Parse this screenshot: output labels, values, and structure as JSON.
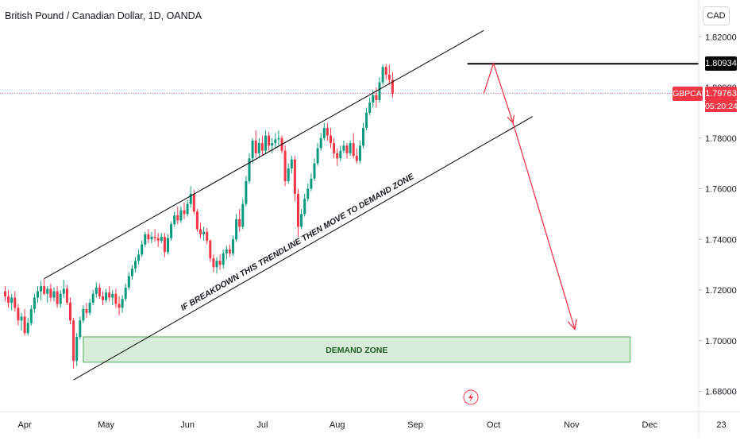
{
  "chart_data": {
    "type": "candlestick",
    "title": "British Pound / Canadian Dollar, 1D, OANDA",
    "symbol": "GBPCAD",
    "currency": "CAD",
    "ylim": [
      1.672,
      1.832
    ],
    "y_ticks": [
      "1.82000",
      "1.80000",
      "1.78000",
      "1.76000",
      "1.74000",
      "1.72000",
      "1.70000",
      "1.68000"
    ],
    "y_tick_values": [
      1.82,
      1.8,
      1.78,
      1.76,
      1.74,
      1.72,
      1.7,
      1.68
    ],
    "x_ticks": [
      "Apr",
      "May",
      "Jun",
      "Jul",
      "Aug",
      "Sep",
      "Oct",
      "Nov",
      "Dec",
      "23"
    ],
    "x_tick_index": [
      6,
      31,
      56,
      79,
      102,
      126,
      150,
      174,
      198,
      220
    ],
    "high_line": {
      "value": 1.80934,
      "label": "1.80934",
      "start_index": 142,
      "color": "#000000"
    },
    "last_price": {
      "value": 1.79763,
      "label": "1.79763",
      "timer": "05:20:24",
      "color": "#f23645"
    },
    "annotations": [
      {
        "type": "zone",
        "label": "DEMAND ZONE",
        "from_index": 24,
        "to_index": 192,
        "y_low": 1.6915,
        "y_high": 1.7015
      },
      {
        "type": "text",
        "label": "IF BREAKDOWN THIS TRENDLINE THEN MOVE TO DEMAND ZONE"
      },
      {
        "type": "channel_upper",
        "from": [
          12,
          1.7245
        ],
        "to": [
          147,
          1.8225
        ]
      },
      {
        "type": "channel_lower",
        "from": [
          21,
          1.6845
        ],
        "to": [
          162,
          1.7885
        ]
      },
      {
        "type": "arrow_path",
        "points": [
          [
            147,
            1.7975
          ],
          [
            150,
            1.8095
          ],
          [
            156,
            1.786
          ]
        ]
      },
      {
        "type": "arrow",
        "from": [
          156,
          1.786
        ],
        "to": [
          175,
          1.7045
        ]
      }
    ],
    "candles": [
      [
        1.7195,
        1.7215,
        1.7155,
        1.7175
      ],
      [
        1.7175,
        1.72,
        1.713,
        1.715
      ],
      [
        1.715,
        1.7185,
        1.712,
        1.717
      ],
      [
        1.717,
        1.7195,
        1.7115,
        1.713
      ],
      [
        1.713,
        1.7145,
        1.706,
        1.708
      ],
      [
        1.708,
        1.711,
        1.704,
        1.7095
      ],
      [
        1.7095,
        1.7125,
        1.702,
        1.703
      ],
      [
        1.703,
        1.709,
        1.702,
        1.707
      ],
      [
        1.707,
        1.714,
        1.706,
        1.7125
      ],
      [
        1.7125,
        1.7185,
        1.711,
        1.717
      ],
      [
        1.717,
        1.7215,
        1.715,
        1.7195
      ],
      [
        1.7195,
        1.7235,
        1.716,
        1.7215
      ],
      [
        1.7215,
        1.7245,
        1.718,
        1.7185
      ],
      [
        1.7185,
        1.7215,
        1.715,
        1.7205
      ],
      [
        1.7205,
        1.7225,
        1.7155,
        1.717
      ],
      [
        1.717,
        1.721,
        1.7155,
        1.7195
      ],
      [
        1.7195,
        1.7215,
        1.713,
        1.7145
      ],
      [
        1.7145,
        1.72,
        1.713,
        1.7185
      ],
      [
        1.7185,
        1.724,
        1.717,
        1.7205
      ],
      [
        1.7205,
        1.722,
        1.714,
        1.715
      ],
      [
        1.715,
        1.717,
        1.7065,
        1.708
      ],
      [
        1.708,
        1.709,
        1.689,
        1.692
      ],
      [
        1.692,
        1.703,
        1.69,
        1.7015
      ],
      [
        1.7015,
        1.7095,
        1.7005,
        1.708
      ],
      [
        1.708,
        1.714,
        1.707,
        1.7125
      ],
      [
        1.7125,
        1.715,
        1.709,
        1.711
      ],
      [
        1.711,
        1.7165,
        1.71,
        1.715
      ],
      [
        1.715,
        1.72,
        1.714,
        1.7185
      ],
      [
        1.7185,
        1.723,
        1.717,
        1.721
      ],
      [
        1.721,
        1.7225,
        1.7165,
        1.7175
      ],
      [
        1.7175,
        1.7195,
        1.714,
        1.716
      ],
      [
        1.716,
        1.7205,
        1.715,
        1.719
      ],
      [
        1.719,
        1.7215,
        1.7155,
        1.717
      ],
      [
        1.717,
        1.72,
        1.714,
        1.7185
      ],
      [
        1.7185,
        1.7205,
        1.713,
        1.7145
      ],
      [
        1.7145,
        1.7175,
        1.71,
        1.713
      ],
      [
        1.713,
        1.718,
        1.711,
        1.7165
      ],
      [
        1.7165,
        1.7225,
        1.7155,
        1.721
      ],
      [
        1.721,
        1.727,
        1.72,
        1.7255
      ],
      [
        1.7255,
        1.73,
        1.724,
        1.7285
      ],
      [
        1.7285,
        1.733,
        1.727,
        1.7315
      ],
      [
        1.7315,
        1.736,
        1.73,
        1.734
      ],
      [
        1.734,
        1.7395,
        1.733,
        1.738
      ],
      [
        1.738,
        1.743,
        1.737,
        1.742
      ],
      [
        1.742,
        1.744,
        1.7385,
        1.74
      ],
      [
        1.74,
        1.743,
        1.7385,
        1.741
      ],
      [
        1.741,
        1.744,
        1.739,
        1.7405
      ],
      [
        1.7405,
        1.7425,
        1.737,
        1.7395
      ],
      [
        1.7395,
        1.7425,
        1.7385,
        1.741
      ],
      [
        1.741,
        1.7425,
        1.733,
        1.735
      ],
      [
        1.735,
        1.742,
        1.734,
        1.7405
      ],
      [
        1.7405,
        1.747,
        1.7395,
        1.746
      ],
      [
        1.746,
        1.751,
        1.745,
        1.7495
      ],
      [
        1.7495,
        1.753,
        1.746,
        1.7475
      ],
      [
        1.7475,
        1.753,
        1.7465,
        1.7515
      ],
      [
        1.7515,
        1.7545,
        1.748,
        1.75
      ],
      [
        1.75,
        1.7555,
        1.749,
        1.754
      ],
      [
        1.754,
        1.761,
        1.7525,
        1.758
      ],
      [
        1.758,
        1.7595,
        1.75,
        1.751
      ],
      [
        1.751,
        1.752,
        1.743,
        1.744
      ],
      [
        1.744,
        1.7465,
        1.7405,
        1.742
      ],
      [
        1.742,
        1.745,
        1.7395,
        1.743
      ],
      [
        1.743,
        1.7445,
        1.738,
        1.7395
      ],
      [
        1.7395,
        1.74,
        1.731,
        1.7325
      ],
      [
        1.7325,
        1.734,
        1.727,
        1.729
      ],
      [
        1.729,
        1.733,
        1.7265,
        1.7315
      ],
      [
        1.7315,
        1.734,
        1.728,
        1.73
      ],
      [
        1.73,
        1.736,
        1.7285,
        1.7345
      ],
      [
        1.7345,
        1.7375,
        1.732,
        1.736
      ],
      [
        1.736,
        1.738,
        1.733,
        1.7345
      ],
      [
        1.7345,
        1.7415,
        1.7335,
        1.74
      ],
      [
        1.74,
        1.75,
        1.739,
        1.748
      ],
      [
        1.748,
        1.752,
        1.743,
        1.745
      ],
      [
        1.745,
        1.756,
        1.744,
        1.754
      ],
      [
        1.754,
        1.765,
        1.753,
        1.763
      ],
      [
        1.763,
        1.774,
        1.762,
        1.772
      ],
      [
        1.772,
        1.78,
        1.77,
        1.779
      ],
      [
        1.779,
        1.783,
        1.7725,
        1.774
      ],
      [
        1.774,
        1.78,
        1.772,
        1.778
      ],
      [
        1.778,
        1.781,
        1.773,
        1.775
      ],
      [
        1.775,
        1.783,
        1.774,
        1.781
      ],
      [
        1.781,
        1.7825,
        1.775,
        1.777
      ],
      [
        1.777,
        1.78,
        1.774,
        1.778
      ],
      [
        1.778,
        1.782,
        1.776,
        1.7795
      ],
      [
        1.7795,
        1.783,
        1.777,
        1.78
      ],
      [
        1.78,
        1.781,
        1.774,
        1.775
      ],
      [
        1.775,
        1.777,
        1.761,
        1.763
      ],
      [
        1.763,
        1.77,
        1.762,
        1.768
      ],
      [
        1.768,
        1.773,
        1.766,
        1.7715
      ],
      [
        1.7715,
        1.773,
        1.755,
        1.758
      ],
      [
        1.758,
        1.76,
        1.741,
        1.745
      ],
      [
        1.745,
        1.752,
        1.744,
        1.75
      ],
      [
        1.75,
        1.758,
        1.749,
        1.756
      ],
      [
        1.756,
        1.762,
        1.755,
        1.76
      ],
      [
        1.76,
        1.766,
        1.759,
        1.764
      ],
      [
        1.764,
        1.772,
        1.763,
        1.77
      ],
      [
        1.77,
        1.778,
        1.769,
        1.776
      ],
      [
        1.776,
        1.782,
        1.775,
        1.78
      ],
      [
        1.78,
        1.786,
        1.779,
        1.784
      ],
      [
        1.784,
        1.786,
        1.779,
        1.781
      ],
      [
        1.781,
        1.784,
        1.776,
        1.778
      ],
      [
        1.778,
        1.78,
        1.772,
        1.774
      ],
      [
        1.774,
        1.776,
        1.769,
        1.772
      ],
      [
        1.772,
        1.777,
        1.771,
        1.775
      ],
      [
        1.775,
        1.779,
        1.774,
        1.777
      ],
      [
        1.777,
        1.778,
        1.772,
        1.774
      ],
      [
        1.774,
        1.779,
        1.773,
        1.778
      ],
      [
        1.778,
        1.782,
        1.772,
        1.773
      ],
      [
        1.773,
        1.776,
        1.77,
        1.771
      ],
      [
        1.771,
        1.779,
        1.77,
        1.777
      ],
      [
        1.777,
        1.786,
        1.776,
        1.784
      ],
      [
        1.784,
        1.792,
        1.783,
        1.79
      ],
      [
        1.79,
        1.796,
        1.789,
        1.794
      ],
      [
        1.794,
        1.799,
        1.792,
        1.797
      ],
      [
        1.797,
        1.8,
        1.792,
        1.795
      ],
      [
        1.795,
        1.804,
        1.794,
        1.802
      ],
      [
        1.802,
        1.809,
        1.801,
        1.808
      ],
      [
        1.808,
        1.8093,
        1.803,
        1.805
      ],
      [
        1.805,
        1.809,
        1.801,
        1.803
      ],
      [
        1.803,
        1.806,
        1.796,
        1.7976
      ]
    ]
  }
}
